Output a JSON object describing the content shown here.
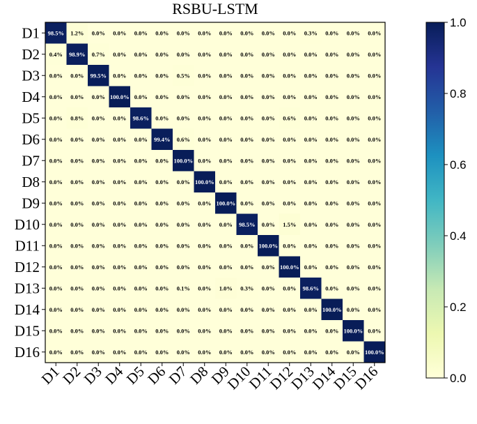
{
  "chart_data": {
    "type": "heatmap",
    "title": "RSBU-LSTM",
    "xlabel": "",
    "ylabel": "",
    "row_labels": [
      "D1",
      "D2",
      "D3",
      "D4",
      "D5",
      "D6",
      "D7",
      "D8",
      "D9",
      "D10",
      "D11",
      "D12",
      "D13",
      "D14",
      "D15",
      "D16"
    ],
    "col_labels": [
      "D1",
      "D2",
      "D3",
      "D4",
      "D5",
      "D6",
      "D7",
      "D8",
      "D9",
      "D10",
      "D11",
      "D12",
      "D13",
      "D14",
      "D15",
      "D16"
    ],
    "values": [
      [
        0.985,
        0.012,
        0,
        0,
        0,
        0,
        0,
        0,
        0,
        0,
        0,
        0,
        0.003,
        0,
        0,
        0
      ],
      [
        0.004,
        0.989,
        0.007,
        0,
        0,
        0,
        0,
        0,
        0,
        0,
        0,
        0,
        0,
        0,
        0,
        0
      ],
      [
        0,
        0,
        0.995,
        0,
        0,
        0,
        0.005,
        0,
        0,
        0,
        0,
        0,
        0,
        0,
        0,
        0
      ],
      [
        0,
        0,
        0,
        1.0,
        0,
        0,
        0,
        0,
        0,
        0,
        0,
        0,
        0,
        0,
        0,
        0
      ],
      [
        0,
        0.008,
        0,
        0,
        0.986,
        0,
        0,
        0,
        0,
        0,
        0,
        0.006,
        0,
        0,
        0,
        0
      ],
      [
        0,
        0,
        0,
        0,
        0,
        0.994,
        0.006,
        0,
        0,
        0,
        0,
        0,
        0,
        0,
        0,
        0
      ],
      [
        0,
        0,
        0,
        0,
        0,
        0,
        1.0,
        0,
        0,
        0,
        0,
        0,
        0,
        0,
        0,
        0
      ],
      [
        0,
        0,
        0,
        0,
        0,
        0,
        0,
        1.0,
        0,
        0,
        0,
        0,
        0,
        0,
        0,
        0
      ],
      [
        0,
        0,
        0,
        0,
        0,
        0,
        0,
        0,
        1.0,
        0,
        0,
        0,
        0,
        0,
        0,
        0
      ],
      [
        0,
        0,
        0,
        0,
        0,
        0,
        0,
        0,
        0,
        0.985,
        0,
        0.015,
        0,
        0,
        0,
        0
      ],
      [
        0,
        0,
        0,
        0,
        0,
        0,
        0,
        0,
        0,
        0,
        1.0,
        0,
        0,
        0,
        0,
        0
      ],
      [
        0,
        0,
        0,
        0,
        0,
        0,
        0,
        0,
        0,
        0,
        0,
        1.0,
        0,
        0,
        0,
        0
      ],
      [
        0,
        0,
        0,
        0,
        0,
        0,
        0.001,
        0,
        0.01,
        0.003,
        0,
        0,
        0.986,
        0,
        0,
        0
      ],
      [
        0,
        0,
        0,
        0,
        0,
        0,
        0,
        0,
        0,
        0,
        0,
        0,
        0,
        1.0,
        0,
        0
      ],
      [
        0,
        0,
        0,
        0,
        0,
        0,
        0,
        0,
        0,
        0,
        0,
        0,
        0,
        0,
        1.0,
        0
      ],
      [
        0,
        0,
        0,
        0,
        0,
        0,
        0,
        0,
        0,
        0,
        0,
        0,
        0,
        0,
        0,
        1.0
      ]
    ],
    "cell_labels": [
      [
        "98.5%",
        "1.2%",
        "0.0%",
        "0.0%",
        "0.0%",
        "0.0%",
        "0.0%",
        "0.0%",
        "0.0%",
        "0.0%",
        "0.0%",
        "0.0%",
        "0.3%",
        "0.0%",
        "0.0%",
        "0.0%"
      ],
      [
        "0.4%",
        "98.9%",
        "0.7%",
        "0.0%",
        "0.0%",
        "0.0%",
        "0.0%",
        "0.0%",
        "0.0%",
        "0.0%",
        "0.0%",
        "0.0%",
        "0.0%",
        "0.0%",
        "0.0%",
        "0.0%"
      ],
      [
        "0.0%",
        "0.0%",
        "99.5%",
        "0.0%",
        "0.0%",
        "0.0%",
        "0.5%",
        "0.0%",
        "0.0%",
        "0.0%",
        "0.0%",
        "0.0%",
        "0.0%",
        "0.0%",
        "0.0%",
        "0.0%"
      ],
      [
        "0.0%",
        "0.0%",
        "0.0%",
        "100.0%",
        "0.0%",
        "0.0%",
        "0.0%",
        "0.0%",
        "0.0%",
        "0.0%",
        "0.0%",
        "0.0%",
        "0.0%",
        "0.0%",
        "0.0%",
        "0.0%"
      ],
      [
        "0.0%",
        "0.8%",
        "0.0%",
        "0.0%",
        "98.6%",
        "0.0%",
        "0.0%",
        "0.0%",
        "0.0%",
        "0.0%",
        "0.0%",
        "0.6%",
        "0.0%",
        "0.0%",
        "0.0%",
        "0.0%"
      ],
      [
        "0.0%",
        "0.0%",
        "0.0%",
        "0.0%",
        "0.0%",
        "99.4%",
        "0.6%",
        "0.0%",
        "0.0%",
        "0.0%",
        "0.0%",
        "0.0%",
        "0.0%",
        "0.0%",
        "0.0%",
        "0.0%"
      ],
      [
        "0.0%",
        "0.0%",
        "0.0%",
        "0.0%",
        "0.0%",
        "0.0%",
        "100.0%",
        "0.0%",
        "0.0%",
        "0.0%",
        "0.0%",
        "0.0%",
        "0.0%",
        "0.0%",
        "0.0%",
        "0.0%"
      ],
      [
        "0.0%",
        "0.0%",
        "0.0%",
        "0.0%",
        "0.0%",
        "0.0%",
        "0.0%",
        "100.0%",
        "0.0%",
        "0.0%",
        "0.0%",
        "0.0%",
        "0.0%",
        "0.0%",
        "0.0%",
        "0.0%"
      ],
      [
        "0.0%",
        "0.0%",
        "0.0%",
        "0.0%",
        "0.0%",
        "0.0%",
        "0.0%",
        "0.0%",
        "100.0%",
        "0.0%",
        "0.0%",
        "0.0%",
        "0.0%",
        "0.0%",
        "0.0%",
        "0.0%"
      ],
      [
        "0.0%",
        "0.0%",
        "0.0%",
        "0.0%",
        "0.0%",
        "0.0%",
        "0.0%",
        "0.0%",
        "0.0%",
        "98.5%",
        "0.0%",
        "1.5%",
        "0.0%",
        "0.0%",
        "0.0%",
        "0.0%"
      ],
      [
        "0.0%",
        "0.0%",
        "0.0%",
        "0.0%",
        "0.0%",
        "0.0%",
        "0.0%",
        "0.0%",
        "0.0%",
        "0.0%",
        "100.0%",
        "0.0%",
        "0.0%",
        "0.0%",
        "0.0%",
        "0.0%"
      ],
      [
        "0.0%",
        "0.0%",
        "0.0%",
        "0.0%",
        "0.0%",
        "0.0%",
        "0.0%",
        "0.0%",
        "0.0%",
        "0.0%",
        "0.0%",
        "100.0%",
        "0.0%",
        "0.0%",
        "0.0%",
        "0.0%"
      ],
      [
        "0.0%",
        "0.0%",
        "0.0%",
        "0.0%",
        "0.0%",
        "0.0%",
        "0.1%",
        "0.0%",
        "1.0%",
        "0.3%",
        "0.0%",
        "0.0%",
        "98.6%",
        "0.0%",
        "0.0%",
        "0.0%"
      ],
      [
        "0.0%",
        "0.0%",
        "0.0%",
        "0.0%",
        "0.0%",
        "0.0%",
        "0.0%",
        "0.0%",
        "0.0%",
        "0.0%",
        "0.0%",
        "0.0%",
        "0.0%",
        "100.0%",
        "0.0%",
        "0.0%"
      ],
      [
        "0.0%",
        "0.0%",
        "0.0%",
        "0.0%",
        "0.0%",
        "0.0%",
        "0.0%",
        "0.0%",
        "0.0%",
        "0.0%",
        "0.0%",
        "0.0%",
        "0.0%",
        "0.0%",
        "100.0%",
        "0.0%"
      ],
      [
        "0.0%",
        "0.0%",
        "0.0%",
        "0.0%",
        "0.0%",
        "0.0%",
        "0.0%",
        "0.0%",
        "0.0%",
        "0.0%",
        "0.0%",
        "0.0%",
        "0.0%",
        "0.0%",
        "0.0%",
        "100.0%"
      ]
    ],
    "colorbar": {
      "colormap": "YlGnBu",
      "range": [
        0.0,
        1.0
      ],
      "ticks": [
        "0.0",
        "0.2",
        "0.4",
        "0.6",
        "0.8",
        "1.0"
      ],
      "placement": "right"
    },
    "grid": false,
    "colors": {
      "low": "#ffffd9",
      "high": "#081d58",
      "cell_text_light": "#ffffff",
      "cell_text_dark": "#000000"
    }
  }
}
